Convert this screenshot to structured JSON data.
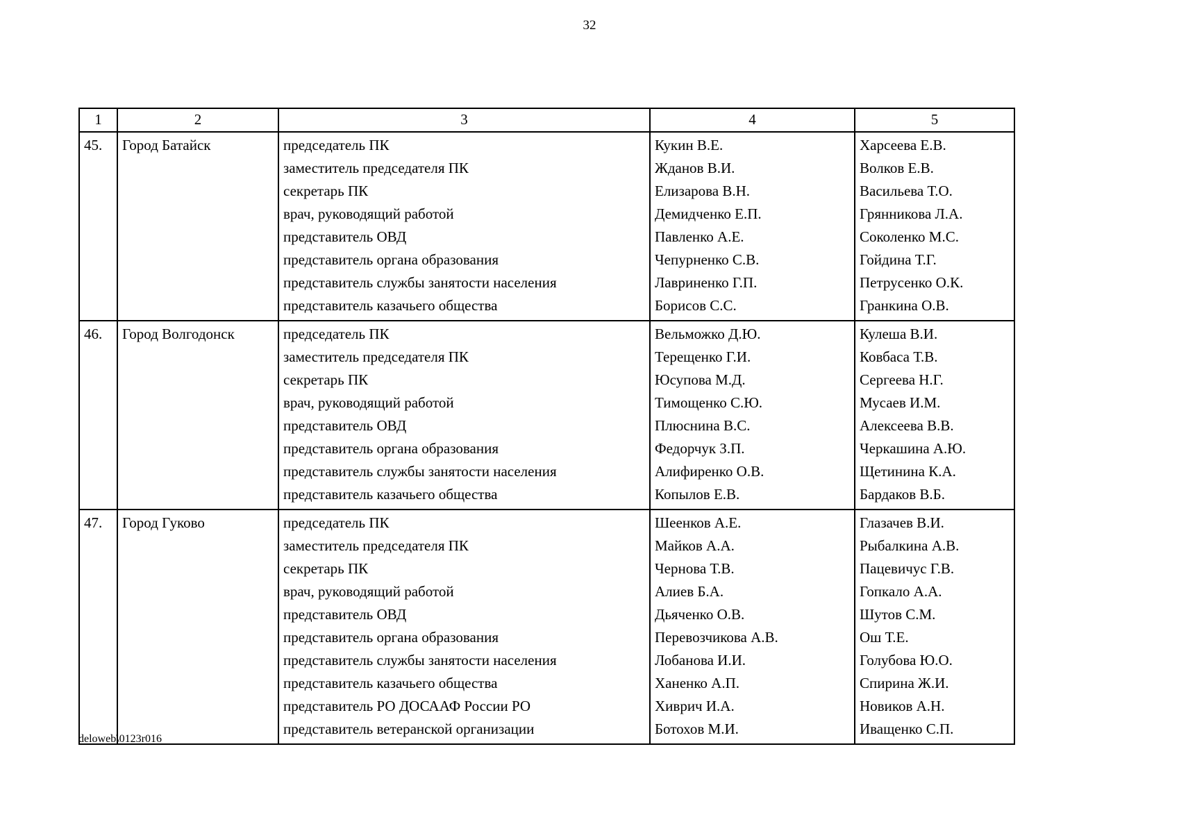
{
  "page_number": "32",
  "footer": "deloweb\\0123r016",
  "table": {
    "headers": [
      "1",
      "2",
      "3",
      "4",
      "5"
    ],
    "rows": [
      {
        "num": "45.",
        "city": "Город Батайск",
        "entries": [
          {
            "position": "председатель ПК",
            "name1": "Кукин В.Е.",
            "name2": "Харсеева Е.В."
          },
          {
            "position": "заместитель председателя ПК",
            "name1": "Жданов В.И.",
            "name2": "Волков Е.В."
          },
          {
            "position": "секретарь ПК",
            "name1": "Елизарова В.Н.",
            "name2": "Васильева Т.О."
          },
          {
            "position": "врач, руководящий работой",
            "name1": "Демидченко Е.П.",
            "name2": "Грянникова Л.А."
          },
          {
            "position": "представитель ОВД",
            "name1": "Павленко А.Е.",
            "name2": "Соколенко М.С."
          },
          {
            "position": "представитель органа образования",
            "name1": "Чепурненко С.В.",
            "name2": "Гойдина Т.Г."
          },
          {
            "position": "представитель службы занятости населения",
            "name1": "Лавриненко Г.П.",
            "name2": "Петрусенко О.К."
          },
          {
            "position": "представитель казачьего общества",
            "name1": "Борисов С.С.",
            "name2": "Гранкина О.В."
          }
        ]
      },
      {
        "num": "46.",
        "city": "Город Волгодонск",
        "entries": [
          {
            "position": "председатель ПК",
            "name1": "Вельможко Д.Ю.",
            "name2": "Кулеша В.И."
          },
          {
            "position": "заместитель председателя ПК",
            "name1": "Терещенко Г.И.",
            "name2": "Ковбаса Т.В."
          },
          {
            "position": "секретарь ПК",
            "name1": "Юсупова М.Д.",
            "name2": "Сергеева Н.Г."
          },
          {
            "position": "врач, руководящий работой",
            "name1": "Тимощенко С.Ю.",
            "name2": "Мусаев И.М."
          },
          {
            "position": "представитель ОВД",
            "name1": "Плюснина В.С.",
            "name2": "Алексеева В.В."
          },
          {
            "position": "представитель органа образования",
            "name1": "Федорчук З.П.",
            "name2": "Черкашина А.Ю."
          },
          {
            "position": "представитель службы занятости населения",
            "name1": "Алифиренко О.В.",
            "name2": "Щетинина К.А."
          },
          {
            "position": "представитель казачьего общества",
            "name1": "Копылов Е.В.",
            "name2": "Бардаков В.Б."
          }
        ]
      },
      {
        "num": "47.",
        "city": "Город Гуково",
        "entries": [
          {
            "position": "председатель ПК",
            "name1": "Шеенков А.Е.",
            "name2": "Глазачев В.И."
          },
          {
            "position": "заместитель председателя ПК",
            "name1": "Майков А.А.",
            "name2": "Рыбалкина А.В."
          },
          {
            "position": "секретарь ПК",
            "name1": "Чернова Т.В.",
            "name2": "Пацевичус Г.В."
          },
          {
            "position": "врач, руководящий работой",
            "name1": "Алиев Б.А.",
            "name2": "Гопкало А.А."
          },
          {
            "position": "представитель ОВД",
            "name1": "Дьяченко О.В.",
            "name2": "Шутов С.М."
          },
          {
            "position": "представитель органа образования",
            "name1": "Перевозчикова А.В.",
            "name2": "Ош Т.Е."
          },
          {
            "position": "представитель службы занятости населения",
            "name1": "Лобанова И.И.",
            "name2": "Голубова Ю.О."
          },
          {
            "position": "представитель казачьего общества",
            "name1": "Ханенко А.П.",
            "name2": "Спирина Ж.И."
          },
          {
            "position": "представитель РО ДОСААФ России РО",
            "name1": "Хиврич И.А.",
            "name2": "Новиков А.Н."
          },
          {
            "position": "представитель ветеранской организации",
            "name1": "Ботохов М.И.",
            "name2": "Иващенко С.П."
          }
        ]
      }
    ]
  }
}
